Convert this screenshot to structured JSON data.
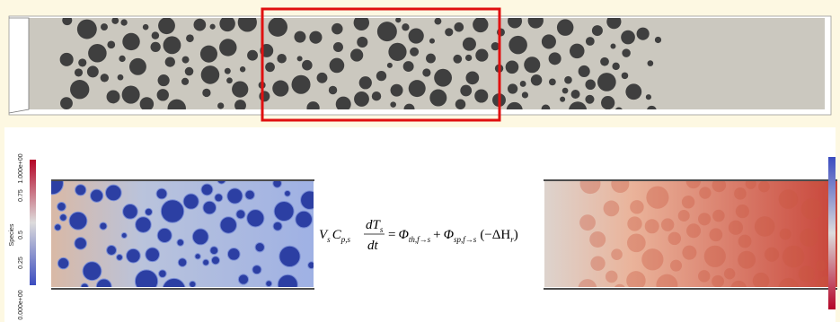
{
  "colorbar": {
    "title": "Species",
    "ticks": [
      "1.000e+00",
      "0.75",
      "0.5",
      "0.25",
      "0.000e+00"
    ]
  },
  "equation": {
    "v": "V",
    "v_sub": "s",
    "c": "C",
    "c_sub": "p,s",
    "num": "dT",
    "num_sub": "s",
    "den": "dt",
    "eq": "=",
    "phi1": "Φ",
    "phi1_sub": "th,f→s",
    "plus": "+",
    "phi2": "Φ",
    "phi2_sub": "sp,f→s",
    "paren": "(−ΔH",
    "paren_sub": "r",
    "close": ")"
  }
}
